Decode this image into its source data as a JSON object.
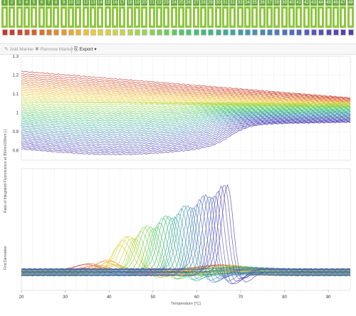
{
  "capillaries": {
    "numbers": [
      "1",
      "2",
      "3",
      "4",
      "5",
      "6",
      "7",
      "8",
      "9",
      "10",
      "11",
      "12",
      "13",
      "14",
      "15",
      "16",
      "17",
      "18",
      "19",
      "20",
      "21",
      "22",
      "23",
      "24",
      "25",
      "26",
      "27",
      "28",
      "29",
      "30",
      "31",
      "32",
      "33",
      "34",
      "35",
      "36",
      "37",
      "38",
      "39",
      "40",
      "41",
      "42",
      "43",
      "44",
      "45",
      "46",
      "47",
      "48"
    ],
    "swatch_colors": [
      "#c8352c",
      "#cc3e2b",
      "#d04a2a",
      "#d45629",
      "#d86328",
      "#dc7028",
      "#e07d27",
      "#e38b27",
      "#e79927",
      "#eaa727",
      "#ecb428",
      "#edc12a",
      "#ecca2d",
      "#e6cf31",
      "#ddd236",
      "#d1d43a",
      "#c4d63e",
      "#b6d742",
      "#a7d746",
      "#98d64a",
      "#88d44e",
      "#79d152",
      "#6bce56",
      "#5dcb5c",
      "#52c863",
      "#49c56b",
      "#42c174",
      "#3ebd7d",
      "#3cb886",
      "#3bb38f",
      "#3bad98",
      "#3ca7a0",
      "#3ea0a7",
      "#4199ad",
      "#4492b1",
      "#478bb5",
      "#4a84b8",
      "#4c7cba",
      "#4e75bc",
      "#506ebd",
      "#5267bd",
      "#5360bd",
      "#5459bc",
      "#5453ba",
      "#544db8",
      "#5348b5",
      "#5243b2",
      "#513faf"
    ]
  },
  "toolbar": {
    "add_marker": "Add Marker",
    "remove_marker": "Remove Marker",
    "export": "Export",
    "add_marker_icon": "pencil-icon",
    "remove_marker_icon": "close-icon",
    "export_icon": "export-icon"
  },
  "chart_data": [
    {
      "type": "line",
      "title": "",
      "xlabel": "",
      "ylabel": "Ratio of Integrated Fluorescence at 350nm/330nm [-]",
      "xlim": [
        20,
        95
      ],
      "ylim": [
        0.75,
        1.3
      ],
      "yticks": [
        0.8,
        0.9,
        1,
        1.1,
        1.2,
        1.3
      ],
      "grid": true,
      "series_count": 48,
      "series": [
        {
          "capillary": 1,
          "color": "#c8352c",
          "start": 1.22,
          "end": 1.08,
          "transition_mid": 0,
          "amplitude": 0
        },
        {
          "capillary": 12,
          "color": "#edc12a",
          "start": 1.16,
          "end": 1.06,
          "transition_mid": 0,
          "amplitude": 0
        },
        {
          "capillary": 24,
          "color": "#5dcb5c",
          "start": 1.02,
          "end": 0.99,
          "transition_mid": 55,
          "amplitude": 0.04
        },
        {
          "capillary": 36,
          "color": "#478bb5",
          "start": 0.86,
          "end": 0.95,
          "transition_mid": 65,
          "amplitude": 0.08
        },
        {
          "capillary": 48,
          "color": "#513faf",
          "start": 0.81,
          "end": 0.93,
          "transition_mid": 68,
          "amplitude": 0.11
        }
      ]
    },
    {
      "type": "line",
      "title": "",
      "xlabel": "Temperature [°C]",
      "ylabel": "First Derivative",
      "xlim": [
        20,
        95
      ],
      "xticks": [
        20,
        30,
        40,
        50,
        60,
        70,
        80,
        90
      ],
      "grid": true,
      "series_count": 48,
      "peaks": [
        {
          "capillary": 20,
          "color": "#98d64a",
          "x": 39,
          "height": 0.25
        },
        {
          "capillary": 26,
          "color": "#49c56b",
          "x": 45,
          "height": 0.3
        },
        {
          "capillary": 32,
          "color": "#3ca7a0",
          "x": 54,
          "height": 0.5
        },
        {
          "capillary": 38,
          "color": "#4c7cba",
          "x": 61,
          "height": 0.7
        },
        {
          "capillary": 44,
          "color": "#544db8",
          "x": 66,
          "height": 0.9
        },
        {
          "capillary": 48,
          "color": "#513faf",
          "x": 67,
          "height": 1.0
        }
      ]
    }
  ]
}
